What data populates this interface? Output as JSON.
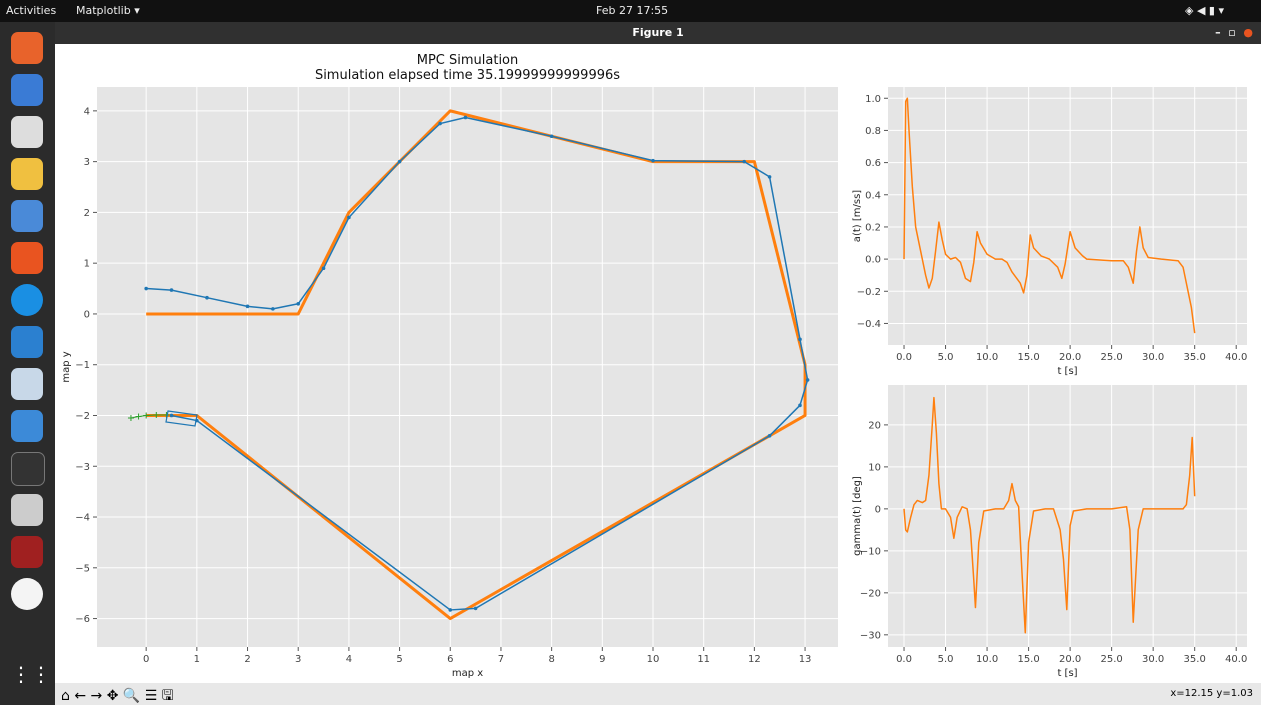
{
  "top_bar": {
    "activities": "Activities",
    "app": "Matplotlib ▾",
    "clock": "Feb 27  17:55"
  },
  "window": {
    "title": "Figure 1"
  },
  "toolbar": {
    "status": "x=12.15 y=1.03"
  },
  "chart_data": [
    {
      "type": "line",
      "title": "MPC Simulation",
      "subtitle": "Simulation elapsed time 35.19999999999996s",
      "x_label": "map x",
      "y_label": "map y",
      "grid": true,
      "xlim": [
        -0.97,
        13.65
      ],
      "ylim": [
        -6.56,
        4.47
      ],
      "xticks": [
        0,
        1,
        2,
        3,
        4,
        5,
        6,
        7,
        8,
        9,
        10,
        11,
        12,
        13
      ],
      "yticks": [
        {
          "value": -6,
          "label": "−6"
        },
        {
          "value": -5,
          "label": "−5"
        },
        {
          "value": -4,
          "label": "−4"
        },
        {
          "value": -3,
          "label": "−3"
        },
        {
          "value": -2,
          "label": "−2"
        },
        {
          "value": -1,
          "label": "−1"
        },
        0,
        1,
        2,
        3,
        4
      ],
      "series": [
        {
          "color": "#ff7f0e",
          "width": 3,
          "x": [
            0,
            3,
            4,
            6,
            10,
            12,
            13,
            13,
            6,
            1,
            0
          ],
          "values": [
            0,
            0,
            2,
            4,
            3,
            3,
            -1,
            -2,
            -6,
            -2,
            -2
          ]
        },
        {
          "color": "#1f77b4",
          "width": 1.5,
          "marker": "o",
          "x": [
            0,
            0.5,
            1.2,
            2,
            2.5,
            3,
            3.5,
            4,
            5,
            5.8,
            6.3,
            8,
            10,
            11.8,
            12.3,
            12.9,
            13.05,
            12.9,
            12.3,
            6.5,
            6,
            1,
            0.5
          ],
          "values": [
            0.5,
            0.47,
            0.32,
            0.15,
            0.1,
            0.2,
            0.9,
            1.9,
            3,
            3.75,
            3.87,
            3.5,
            3.02,
            3,
            2.7,
            -0.5,
            -1.3,
            -1.8,
            -2.4,
            -5.8,
            -5.83,
            -2.1,
            -2
          ]
        },
        {
          "color": "#2ca02c",
          "width": 1,
          "marker": "+",
          "x": [
            -0.3,
            -0.15,
            0,
            0.2,
            0.4
          ],
          "values": [
            -2.05,
            -2.02,
            -2,
            -1.99,
            -1.99
          ]
        }
      ]
    },
    {
      "type": "line",
      "x_label": "t [s]",
      "y_label": "a(t) [m/ss]",
      "grid": true,
      "xlim": [
        -1.93,
        41.3
      ],
      "ylim": [
        -0.534,
        1.07
      ],
      "xticks": [
        {
          "value": 0,
          "label": "0.0"
        },
        {
          "value": 5,
          "label": "5.0"
        },
        {
          "value": 10,
          "label": "10.0"
        },
        {
          "value": 15,
          "label": "15.0"
        },
        {
          "value": 20,
          "label": "20.0"
        },
        {
          "value": 25,
          "label": "25.0"
        },
        {
          "value": 30,
          "label": "30.0"
        },
        {
          "value": 35,
          "label": "35.0"
        },
        {
          "value": 40,
          "label": "40.0"
        }
      ],
      "yticks": [
        {
          "value": -0.4,
          "label": "−0.4"
        },
        {
          "value": -0.2,
          "label": "−0.2"
        },
        {
          "value": 0,
          "label": "0.0"
        },
        0.2,
        0.4,
        0.6,
        0.8,
        {
          "value": 1,
          "label": "1.0"
        }
      ],
      "series": [
        {
          "color": "#ff7f0e",
          "width": 1.5,
          "x": [
            0,
            0.2,
            0.4,
            0.6,
            1,
            1.4,
            2,
            2.6,
            3,
            3.4,
            3.8,
            4.2,
            4.6,
            5,
            5.6,
            6.2,
            6.8,
            7.4,
            8,
            8.4,
            8.8,
            9.2,
            10,
            11,
            11.8,
            12.4,
            13,
            14,
            14.4,
            14.8,
            15.2,
            15.6,
            16.5,
            17.5,
            18.5,
            19,
            19.4,
            20,
            20.6,
            21.5,
            22,
            25,
            26.4,
            27,
            27.6,
            28,
            28.4,
            28.8,
            29.4,
            31,
            33,
            33.6,
            34,
            34.6,
            35
          ],
          "values": [
            0,
            0.98,
            1,
            0.8,
            0.45,
            0.2,
            0.05,
            -0.1,
            -0.18,
            -0.12,
            0.05,
            0.23,
            0.12,
            0.03,
            0,
            0.01,
            -0.02,
            -0.12,
            -0.14,
            -0.02,
            0.17,
            0.1,
            0.03,
            0,
            0,
            -0.02,
            -0.08,
            -0.15,
            -0.21,
            -0.1,
            0.15,
            0.07,
            0.02,
            0,
            -0.05,
            -0.12,
            -0.03,
            0.17,
            0.07,
            0.02,
            0,
            -0.01,
            -0.01,
            -0.05,
            -0.15,
            0.05,
            0.2,
            0.07,
            0.01,
            0,
            -0.01,
            -0.05,
            -0.15,
            -0.3,
            -0.46
          ]
        }
      ]
    },
    {
      "type": "line",
      "x_label": "t [s]",
      "y_label": "gamma(t) [deg]",
      "grid": true,
      "xlim": [
        -1.93,
        41.3
      ],
      "ylim": [
        -32.9,
        29.5
      ],
      "xticks": [
        {
          "value": 0,
          "label": "0.0"
        },
        {
          "value": 5,
          "label": "5.0"
        },
        {
          "value": 10,
          "label": "10.0"
        },
        {
          "value": 15,
          "label": "15.0"
        },
        {
          "value": 20,
          "label": "20.0"
        },
        {
          "value": 25,
          "label": "25.0"
        },
        {
          "value": 30,
          "label": "30.0"
        },
        {
          "value": 35,
          "label": "35.0"
        },
        {
          "value": 40,
          "label": "40.0"
        }
      ],
      "yticks": [
        {
          "value": -30,
          "label": "−30"
        },
        {
          "value": -20,
          "label": "−20"
        },
        {
          "value": -10,
          "label": "−10"
        },
        0,
        10,
        20
      ],
      "series": [
        {
          "color": "#ff7f0e",
          "width": 1.5,
          "x": [
            0,
            0.2,
            0.4,
            0.8,
            1.2,
            1.6,
            2.2,
            2.6,
            3,
            3.4,
            3.6,
            3.9,
            4.2,
            4.5,
            5,
            5.6,
            6,
            6.4,
            7,
            7.6,
            8,
            8.4,
            8.6,
            9,
            9.6,
            11,
            12,
            12.6,
            13,
            13.4,
            13.8,
            14.2,
            14.6,
            15,
            15.6,
            17,
            18,
            18.8,
            19.2,
            19.6,
            20,
            20.4,
            22,
            25,
            26.8,
            27.2,
            27.6,
            28.2,
            28.8,
            33.6,
            34,
            34.4,
            34.7,
            35
          ],
          "values": [
            0,
            -5,
            -5.5,
            -2,
            1,
            2,
            1.5,
            2,
            8,
            20,
            26.5,
            18,
            6,
            0,
            0,
            -2,
            -7,
            -2,
            0.5,
            0,
            -5,
            -17,
            -23.5,
            -8,
            -0.5,
            0,
            0,
            2,
            6,
            2,
            0.5,
            -15,
            -29.5,
            -8,
            -0.5,
            0,
            0,
            -5,
            -12,
            -24,
            -4,
            -0.5,
            0,
            0,
            0.5,
            -5,
            -27,
            -5,
            0,
            0,
            1,
            8,
            17,
            3
          ]
        }
      ]
    }
  ]
}
